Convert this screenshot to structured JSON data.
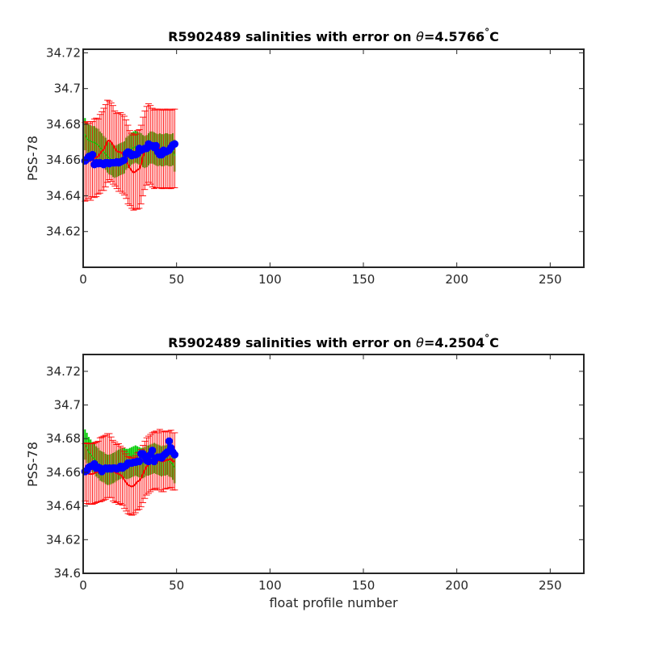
{
  "chart_data": [
    {
      "type": "line",
      "title_main": "R5902489 salinities with error on ",
      "title_theta": "θ",
      "title_value": "=4.5766",
      "title_deg": "°",
      "title_unit": "C",
      "xlabel": "",
      "ylabel": "PSS-78",
      "xlim": [
        0,
        268
      ],
      "ylim": [
        34.6,
        34.722
      ],
      "xticks": [
        0,
        50,
        100,
        150,
        200,
        250
      ],
      "yticks": [
        34.62,
        34.64,
        34.66,
        34.68,
        34.7,
        34.72
      ],
      "ytick_labels": [
        "34.62",
        "34.64",
        "34.66",
        "34.68",
        "34.7",
        "34.72"
      ],
      "series": [
        {
          "role": "float",
          "color": "#0000ff",
          "marker": "circle",
          "values": [
            34.6595,
            34.6605,
            34.662,
            34.6615,
            34.663,
            34.6575,
            34.6585,
            34.658,
            34.6585,
            34.658,
            34.6575,
            34.6585,
            34.6585,
            34.658,
            34.6585,
            34.6585,
            34.6585,
            34.659,
            34.6585,
            34.659,
            34.6595,
            34.66,
            34.6635,
            34.6645,
            34.664,
            34.6625,
            34.663,
            34.663,
            34.6635,
            34.6665,
            34.6655,
            34.666,
            34.6665,
            34.6665,
            34.669,
            34.668,
            34.668,
            34.667,
            34.668,
            34.6645,
            34.663,
            34.663,
            34.6655,
            34.6645,
            34.665,
            34.6655,
            34.667,
            34.6685,
            34.669
          ]
        },
        {
          "role": "mapped",
          "color": "#ff0000",
          "marker": "none",
          "values": [
            34.659,
            34.6595,
            34.6595,
            34.6595,
            34.6605,
            34.661,
            34.6615,
            34.662,
            34.6635,
            34.665,
            34.666,
            34.668,
            34.6705,
            34.671,
            34.67,
            34.6685,
            34.6665,
            34.665,
            34.6645,
            34.6645,
            34.6635,
            34.6625,
            34.6605,
            34.6575,
            34.6555,
            34.654,
            34.653,
            34.6535,
            34.6545,
            34.655,
            34.6575,
            34.662,
            34.6655,
            34.668,
            34.6695,
            34.6685,
            34.667,
            34.666,
            34.6665,
            34.6665,
            34.6665,
            34.666,
            34.666,
            34.6665,
            34.6665,
            34.666,
            34.666,
            34.6665,
            34.6665
          ]
        },
        {
          "role": "calibrated",
          "color": "#00cc00",
          "marker": "none",
          "values": [
            34.6745,
            34.672,
            34.671,
            34.6705,
            34.67,
            34.67,
            34.669,
            34.6685,
            34.667,
            34.666,
            34.6645,
            34.6635,
            34.662,
            34.661,
            34.6605,
            34.6595,
            34.659,
            34.6595,
            34.66,
            34.6605,
            34.661,
            34.6615,
            34.6635,
            34.6645,
            34.6655,
            34.6665,
            34.667,
            34.6675,
            34.667,
            34.6665,
            34.666,
            34.665,
            34.6645,
            34.665,
            34.666,
            34.667,
            34.667,
            34.6665,
            34.666,
            34.6655,
            34.666,
            34.6655,
            34.6655,
            34.666,
            34.666,
            34.6655,
            34.6655,
            34.666,
            34.6625
          ]
        }
      ],
      "error_color": "#ff0000",
      "error_half": [
        0.022,
        0.022,
        0.021,
        0.022,
        0.021,
        0.022,
        0.022,
        0.021,
        0.022,
        0.022,
        0.023,
        0.023,
        0.023,
        0.022,
        0.022,
        0.022,
        0.021,
        0.021,
        0.022,
        0.022,
        0.022,
        0.022,
        0.022,
        0.022,
        0.021,
        0.021,
        0.021,
        0.021,
        0.022,
        0.022,
        0.022,
        0.022,
        0.022,
        0.022,
        0.022,
        0.022,
        0.022,
        0.022,
        0.022,
        0.022,
        0.022,
        0.022,
        0.022,
        0.022,
        0.022,
        0.022,
        0.022,
        0.022,
        0.022
      ],
      "green_half": 0.009
    },
    {
      "type": "line",
      "title_main": "R5902489 salinities with error on ",
      "title_theta": "θ",
      "title_value": "=4.2504",
      "title_deg": "°",
      "title_unit": "C",
      "xlabel": "float profile number",
      "ylabel": "PSS-78",
      "xlim": [
        0,
        268
      ],
      "ylim": [
        34.6,
        34.73
      ],
      "xticks": [
        0,
        50,
        100,
        150,
        200,
        250
      ],
      "yticks": [
        34.6,
        34.62,
        34.64,
        34.66,
        34.68,
        34.7,
        34.72
      ],
      "ytick_labels": [
        "34.6",
        "34.62",
        "34.64",
        "34.66",
        "34.68",
        "34.7",
        "34.72"
      ],
      "series": [
        {
          "role": "float",
          "color": "#0000ff",
          "marker": "circle",
          "values": [
            34.6605,
            34.661,
            34.663,
            34.6635,
            34.664,
            34.665,
            34.6625,
            34.663,
            34.6625,
            34.6605,
            34.662,
            34.6625,
            34.662,
            34.6625,
            34.662,
            34.6625,
            34.6625,
            34.662,
            34.6625,
            34.6635,
            34.6625,
            34.6635,
            34.664,
            34.6655,
            34.6655,
            34.6655,
            34.666,
            34.666,
            34.6665,
            34.6665,
            34.671,
            34.671,
            34.6695,
            34.667,
            34.6665,
            34.6705,
            34.673,
            34.6665,
            34.6685,
            34.669,
            34.669,
            34.6685,
            34.67,
            34.671,
            34.672,
            34.6785,
            34.6745,
            34.672,
            34.6705
          ]
        },
        {
          "role": "mapped",
          "color": "#ff0000",
          "marker": "none",
          "values": [
            34.66,
            34.6595,
            34.659,
            34.659,
            34.659,
            34.6595,
            34.66,
            34.6605,
            34.6615,
            34.662,
            34.6625,
            34.663,
            34.664,
            34.664,
            34.663,
            34.661,
            34.66,
            34.6595,
            34.659,
            34.6585,
            34.6575,
            34.6555,
            34.654,
            34.6525,
            34.652,
            34.6515,
            34.652,
            34.653,
            34.6545,
            34.655,
            34.6565,
            34.659,
            34.6615,
            34.6635,
            34.6645,
            34.6655,
            34.6665,
            34.667,
            34.6675,
            34.6665,
            34.6675,
            34.6665,
            34.6665,
            34.667,
            34.6675,
            34.6675,
            34.668,
            34.6665,
            34.6665
          ]
        },
        {
          "role": "calibrated",
          "color": "#00cc00",
          "marker": "none",
          "values": [
            34.6765,
            34.6745,
            34.672,
            34.6705,
            34.669,
            34.668,
            34.6665,
            34.6655,
            34.664,
            34.6635,
            34.663,
            34.662,
            34.6615,
            34.6615,
            34.662,
            34.6625,
            34.663,
            34.664,
            34.6645,
            34.665,
            34.6655,
            34.6655,
            34.665,
            34.665,
            34.6655,
            34.666,
            34.6665,
            34.667,
            34.6665,
            34.666,
            34.6655,
            34.6655,
            34.666,
            34.667,
            34.667,
            34.6675,
            34.668,
            34.6685,
            34.668,
            34.6675,
            34.667,
            34.6665,
            34.667,
            34.667,
            34.6675,
            34.6665,
            34.666,
            34.6645,
            34.6625
          ]
        }
      ],
      "error_color": "#ff0000",
      "error_half": [
        0.017,
        0.018,
        0.018,
        0.018,
        0.018,
        0.018,
        0.018,
        0.018,
        0.019,
        0.019,
        0.019,
        0.019,
        0.019,
        0.019,
        0.018,
        0.018,
        0.018,
        0.017,
        0.018,
        0.017,
        0.017,
        0.017,
        0.017,
        0.017,
        0.017,
        0.017,
        0.017,
        0.017,
        0.017,
        0.017,
        0.017,
        0.017,
        0.017,
        0.017,
        0.017,
        0.017,
        0.017,
        0.017,
        0.017,
        0.017,
        0.018,
        0.018,
        0.018,
        0.017,
        0.017,
        0.017,
        0.017,
        0.017,
        0.017
      ],
      "green_half": 0.009
    }
  ]
}
